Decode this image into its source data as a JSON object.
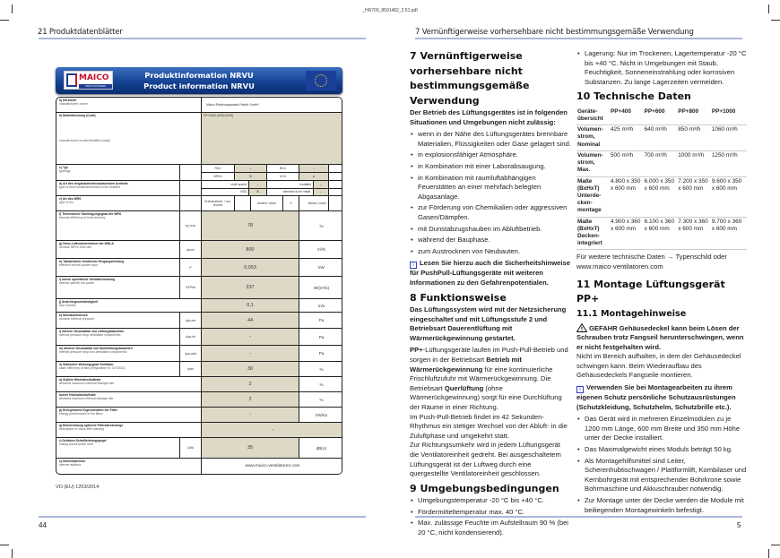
{
  "file_name": "_HR709_8591482_2.51.pdf",
  "left_page": {
    "running_head": "21 Produktdatenblätter",
    "page_number": "44",
    "banner": {
      "title_de": "Produktinformation NRVU",
      "title_en": "Product information NRVU",
      "logo_text": "MAICO",
      "logo_sub": "VENTILATOREN"
    },
    "rows": [
      {
        "de": "a) Hersteller",
        "en": "manufacturer's name",
        "value": "Maico Elektroapparate-Fabrik GmbH"
      },
      {
        "de": "b) Modellkennung (Code)",
        "en": "manufacturer's model identifier (code)",
        "value": "PP+1000 (0040.2415)"
      },
      {
        "de": "c) Typ",
        "en": "typology",
        "grid": [
          [
            "RVU",
            "-",
            "BVU",
            "-",
            ""
          ],
          [
            "NRVU",
            "X",
            "UVU",
            "x",
            ""
          ]
        ]
      },
      {
        "de": "d) Art des eingebauten/einzubauenden Antriebs",
        "en": "type of drive installed/intended to be installed",
        "grid": [
          [
            "multi speed",
            "-",
            "installed",
            "-",
            ""
          ],
          [
            "VSD",
            "X",
            "intended to be instal.",
            "-",
            ""
          ]
        ]
      },
      {
        "de": "e) Art des WRS",
        "en": "type of hrs",
        "grid3": [
          "Kreislaufverb. / run-around",
          "-",
          "anders / other",
          "X",
          "keines / none",
          "-"
        ]
      },
      {
        "de": "f) Thermischer Übertragungsgrad der WRS",
        "en": "thermal efficiency of heat recovery",
        "symbol": "ηt_nrvu",
        "value": "78",
        "unit": "%"
      },
      {
        "de": "g) Nenn-Luftvolumenstrom der NWLA",
        "en": "nominal NRVU flow rate",
        "symbol": "qnom",
        "value": "800",
        "unit": "m³/h"
      },
      {
        "de": "h) Tatsächliche elektrische Eingangsleistung",
        "en": "effective electric power input",
        "symbol": "P",
        "value": "0,053",
        "unit": "kW"
      },
      {
        "de": "i) Innere spezifische Ventilatorleistung",
        "en": "internal specific fan power",
        "symbol": "SFPint",
        "value": "237",
        "unit": "W/(m³/s)"
      },
      {
        "de": "j) Anströmgeschwindigkeit",
        "en": "face velocity",
        "value": "0,1",
        "unit": "m/s"
      },
      {
        "de": "k) Nennaußendruck",
        "en": "nominal external pressure",
        "symbol": "Δps,ext",
        "value": "44",
        "unit": "Pa"
      },
      {
        "de": "l) Interner Druckabfall von Lüftungsbauteilen",
        "en": "internal pressure drop ventilation components",
        "symbol": "Δps,int",
        "value": "-",
        "unit": "Pa"
      },
      {
        "de": "m) Interner Druckabfall von Nichtlüftungsbauteilen",
        "en": "internal pressure drop non-ventilation components",
        "symbol": "Δps,add",
        "value": "-",
        "unit": "Pa"
      },
      {
        "de": "n) Statischer Wirkungsgrad Ventilator",
        "en": "static efficiency of fans (Regulation Nr. 327/2011)",
        "symbol": "ηfan",
        "value": "30",
        "unit": "%"
      },
      {
        "de": "o) Äußere Höchstleckluftrate",
        "en": "declared maximum external leakage rate",
        "value": "2",
        "unit": "%"
      },
      {
        "de": "Innere Höchstleckluftrate",
        "en": "declared maximum internal leakage rate",
        "value": "2",
        "unit": "%"
      },
      {
        "de": "p) Energetische Eigenschaften der Filter",
        "en": "energy performance of the filters",
        "value": "-",
        "unit": "kWh/a"
      },
      {
        "de": "q) Beschreibung optische Filterwarnanzeige",
        "en": "description of visual filter warning",
        "value": "-",
        "span": true
      },
      {
        "de": "r) Gehäuse-Schallleistungspegel",
        "en": "casing sound power level",
        "symbol": "LWA",
        "value": "35",
        "unit": "dB(A)"
      },
      {
        "de": "s) Internetadresse",
        "en": "internet address",
        "value": "www.maico-ventilatoren.com",
        "span": true,
        "white": true
      }
    ],
    "regulation": "VO (EU) 1253/2014"
  },
  "right_page": {
    "running_head": "7 Vernünftigerweise vorhersehbare nicht bestimmungsgemäße Verwendung",
    "page_number": "5",
    "s7": {
      "title": "7 Vernünftigerweise vorhersehbare nicht bestimmungsgemäße Verwendung",
      "intro": "Der Betrieb des Lüftungsgerätes ist in folgenden Situationen und Umgebungen nicht zulässig:",
      "items": [
        "wenn in der Nähe des Lüftungsgerätes brennbare Materialien, Flüssigkeiten oder Gase gelagert sind.",
        "in explosionsfähiger Atmosphäre.",
        "in Kombination mit einer Laborabsaugung.",
        "in Kombination mit raumluftabhängigen Feuerstätten an einer mehrfach belegten Abgasanlage.",
        "zur Förderung von Chemikalien oder aggressiven Gasen/Dämpfen.",
        "mit Dunstabzugshauben im Abluftbetrieb.",
        "während der Bauphase.",
        "zum Austrocknen von Neubauten."
      ],
      "note": "Lesen Sie hierzu auch die Sicherheitshinweise für PushPull-Lüftungsgeräte mit weiteren Informationen zu den Gefahrenpotentialen."
    },
    "s8": {
      "title": "8 Funktionsweise",
      "intro": "Das Lüftungssystem wird mit der Netzsicherung eingeschaltet und mit Lüftungsstufe 2 und Betriebsart Dauerentlüftung mit Wärmerückgewinnung gestartet.",
      "p1_a": "PP+",
      "p1_b": "-Lüftungsgeräte laufen im Push-Pull-Betrieb und sorgen in der Betriebsart ",
      "p1_c": "Betrieb mit Wärmerückgewinnung",
      "p1_d": " für eine kontinuierliche Frischluftzufuhr mit Wärmerückgewinnung. Die Betriebsart ",
      "p1_e": "Querlüftung",
      "p1_f": " (ohne Wärmerückgewinnung) sorgt für eine Durchlüftung der Räume in einer Richtung.",
      "p2": "Im Push-Pull-Betrieb findet im 42 Sekunden-Rhythmus ein stetiger Wechsel von der Abluft- in die Zuluftphase und umgekehrt statt.",
      "p3": "Zur Richtungsumkehr wird in jedem Lüftungsgerät die Ventilatoreinheit gedreht. Bei ausgeschaltetem Lüftungsgerät ist der Luftweg durch eine quergestellte Ventilatoreinheit geschlossen."
    },
    "s9": {
      "title": "9 Umgebungsbedingungen",
      "items": [
        "Umgebungstemperatur -20 °C bis +40 °C.",
        "Fördermitteltemperatur max. 40 °C.",
        "Max. zulässige Feuchte im Aufstellraum 90 % (bei 20 °C, nicht kondensierend).",
        "Lagerung: Nur im Trockenen, Lagertemperatur -20 °C bis +40 °C. Nicht in Umgebungen mit Staub, Feuchtigkeit, Sonneneinstrahlung oder korrosiven Substanzen. Zu lange Lagerzeiten vermeiden."
      ]
    },
    "s10": {
      "title": "10 Technische Daten",
      "table": [
        [
          "Geräte-übersicht",
          "PP+400",
          "PP+600",
          "PP+800",
          "PP+1000"
        ],
        [
          "Volumen-strom, Nominal",
          "425 m³/h",
          "640 m³/h",
          "850 m³/h",
          "1060 m³/h"
        ],
        [
          "Volumen-strom, Max.",
          "500 m³/h",
          "700 m³/h",
          "1000 m³/h",
          "1250 m³/h"
        ],
        [
          "Maße (BxHxT) Unterde-cken-montage",
          "4.800 x 350 x 600 mm",
          "6.000 x 350 x 600 mm",
          "7.200 x 350 x 600 mm",
          "9.600 x 350 x 600 mm"
        ],
        [
          "Maße (BxHxT) Decken-integriert",
          "4.900 x 360 x 600 mm",
          "6.100 x 360 x 600 mm",
          "7.300 x 360 x 600 mm",
          "9.700 x 360 x 600 mm"
        ]
      ],
      "footer": "Für weitere technische Daten → Typenschild oder www.maico-ventilatoren.com"
    },
    "s11": {
      "title": "11 Montage Lüftungsgerät PP+",
      "sub_title": "11.1 Montagehinweise",
      "danger": "GEFAHR Gehäusedeckel kann beim Lösen der Schrauben trotz Fangseil herunterschwingen, wenn er nicht festgehalten wird.",
      "danger_text": "Nicht im Bereich aufhalten, in dem der Gehäusedeckel schwingen kann. Beim Wiederaufbau des Gehäusedeckels Fangseile montieren.",
      "note": "Verwenden Sie bei Montagearbeiten zu ihrem eigenen Schutz persönliche Schutzausrüstungen (Schutzkleidung, Schutzhelm, Schutzbrille etc.).",
      "items": [
        "Das Gerät wird in mehreren Einzelmodulen zu je 1200 mm Länge, 600 mm Breite und 350 mm Höhe unter der Decke installiert.",
        "Das Maximalgewicht eines Moduls beträgt 50 kg.",
        "Als Montagehilfsmittel sind Leiter, Scherenhubtischwagen / Plattformlift, Kombilaser und Kernbohrgerät mit entsprechender Bohrkrone sowie Bohrmaschine und Akkuschrauber notwendig.",
        "Zur Montage unter der Decke werden die Module mit beiliegenden Montagewinkeln befestigt."
      ]
    }
  },
  "colors": {
    "rule": "#a9b8dc",
    "value_bg": "#ddd9c6",
    "banner": "#123f8e",
    "info_icon": "#3340c0"
  }
}
